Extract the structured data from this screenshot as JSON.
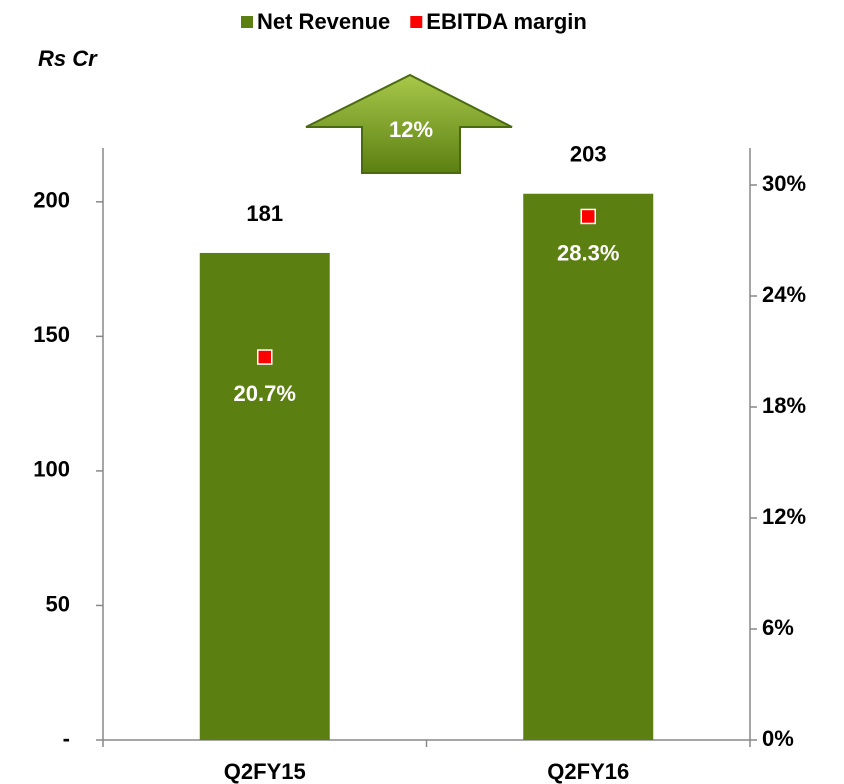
{
  "chart_data": {
    "type": "bar",
    "ylabel": "Rs Cr",
    "annotation": "12%",
    "categories": [
      "Q2FY15",
      "Q2FY16"
    ],
    "series": [
      {
        "name": "Net Revenue",
        "type": "bar",
        "color": "#5c7f12",
        "values": [
          181,
          203
        ]
      },
      {
        "name": "EBITDA margin",
        "type": "scatter",
        "axis": "y2",
        "color": "#ff0000",
        "values": [
          20.7,
          28.3
        ],
        "value_labels": [
          "20.7%",
          "28.3%"
        ]
      }
    ],
    "ylim": [
      0,
      220
    ],
    "yticks": [
      {
        "value": 0,
        "label": "-"
      },
      50,
      100,
      150,
      200
    ],
    "y2lim": [
      0,
      32
    ],
    "y2ticks": [
      {
        "value": 0,
        "label": "0%"
      },
      {
        "value": 6,
        "label": "6%"
      },
      {
        "value": 12,
        "label": "12%"
      },
      {
        "value": 18,
        "label": "18%"
      },
      {
        "value": 24,
        "label": "24%"
      },
      {
        "value": 30,
        "label": "30%"
      }
    ],
    "legend": "top"
  }
}
